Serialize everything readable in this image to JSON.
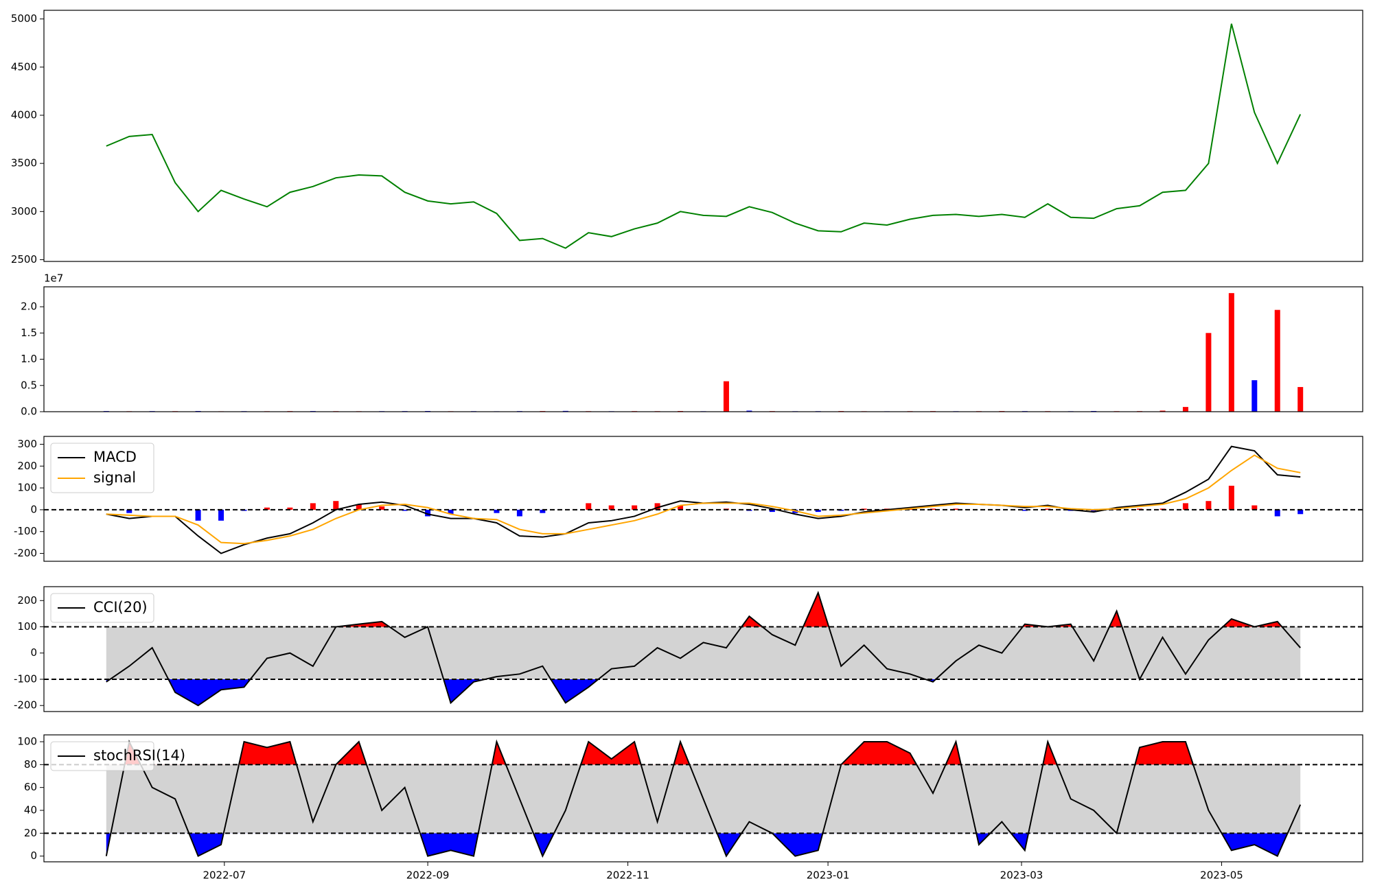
{
  "chart_data": [
    {
      "type": "line",
      "series": [
        {
          "color": "green",
          "values": [
            3680,
            3780,
            3800,
            3300,
            3000,
            3220,
            3130,
            3050,
            3200,
            3260,
            3350,
            3380,
            3370,
            3200,
            3110,
            3080,
            3100,
            2980,
            2700,
            2720,
            2620,
            2780,
            2740,
            2820,
            2880,
            3000,
            2960,
            2950,
            3050,
            2990,
            2880,
            2800,
            2790,
            2880,
            2860,
            2920,
            2960,
            2970,
            2950,
            2970,
            2940,
            3080,
            2940,
            2930,
            3030,
            3060,
            3200,
            3220,
            3500,
            4950,
            4030,
            3500,
            4010
          ]
        }
      ],
      "ylim": [
        2482,
        5090
      ],
      "yticks": [
        2500,
        3000,
        3500,
        4000,
        4500,
        5000
      ]
    },
    {
      "type": "bar",
      "values": [
        120000,
        90000,
        110000,
        100000,
        130000,
        80000,
        100000,
        90000,
        110000,
        120000,
        100000,
        90000,
        100000,
        110000,
        130000,
        90000,
        100000,
        80000,
        110000,
        120000,
        150000,
        100000,
        90000,
        110000,
        100000,
        130000,
        90000,
        5800000,
        200000,
        110000,
        90000,
        100000,
        120000,
        90000,
        80000,
        100000,
        110000,
        90000,
        100000,
        120000,
        110000,
        100000,
        90000,
        130000,
        100000,
        110000,
        200000,
        900000,
        15000000,
        22600000,
        6000000,
        19400000,
        4700000
      ],
      "colors": [
        "blue",
        "red",
        "blue",
        "red",
        "blue",
        "red",
        "blue",
        "red",
        "red",
        "blue",
        "red",
        "red",
        "blue",
        "blue",
        "blue",
        "red",
        "blue",
        "blue",
        "blue",
        "red",
        "blue",
        "red",
        "blue",
        "red",
        "red",
        "red",
        "blue",
        "red",
        "blue",
        "red",
        "blue",
        "blue",
        "red",
        "red",
        "blue",
        "red",
        "red",
        "blue",
        "red",
        "red",
        "blue",
        "red",
        "blue",
        "blue",
        "red",
        "red",
        "red",
        "red",
        "red",
        "red",
        "blue",
        "red",
        "red"
      ],
      "ylim": [
        0,
        23800000
      ],
      "offset_label": "1e7",
      "yticks": [
        {
          "value": 0,
          "label": "0.0"
        },
        {
          "value": 5000000,
          "label": "0.5"
        },
        {
          "value": 10000000,
          "label": "1.0"
        },
        {
          "value": 15000000,
          "label": "1.5"
        },
        {
          "value": 20000000,
          "label": "2.0"
        }
      ]
    },
    {
      "type": "line",
      "series": [
        {
          "name": "MACD",
          "color": "black",
          "values": [
            -20,
            -40,
            -30,
            -30,
            -120,
            -200,
            -160,
            -130,
            -110,
            -60,
            0,
            25,
            35,
            20,
            -20,
            -40,
            -40,
            -60,
            -120,
            -125,
            -110,
            -60,
            -50,
            -30,
            10,
            40,
            30,
            35,
            25,
            5,
            -20,
            -40,
            -30,
            -10,
            0,
            10,
            20,
            30,
            25,
            20,
            10,
            20,
            0,
            -10,
            10,
            20,
            30,
            80,
            140,
            290,
            270,
            160,
            150
          ]
        },
        {
          "name": "signal",
          "color": "orange",
          "values": [
            -20,
            -25,
            -30,
            -30,
            -70,
            -150,
            -155,
            -140,
            -120,
            -90,
            -40,
            0,
            20,
            25,
            10,
            -20,
            -40,
            -45,
            -90,
            -110,
            -110,
            -90,
            -70,
            -50,
            -20,
            20,
            30,
            30,
            30,
            15,
            -5,
            -30,
            -25,
            -15,
            -5,
            5,
            15,
            25,
            25,
            20,
            15,
            15,
            5,
            0,
            5,
            15,
            25,
            50,
            100,
            180,
            250,
            190,
            170
          ]
        }
      ],
      "histogram": {
        "values": [
          0,
          -15,
          0,
          0,
          -50,
          -50,
          -5,
          10,
          10,
          30,
          40,
          25,
          15,
          -5,
          -30,
          -20,
          0,
          -15,
          -30,
          -15,
          0,
          30,
          20,
          20,
          30,
          20,
          0,
          5,
          -5,
          -10,
          -15,
          -10,
          -5,
          5,
          5,
          5,
          5,
          5,
          0,
          0,
          -5,
          5,
          -5,
          -10,
          5,
          5,
          5,
          30,
          40,
          110,
          20,
          -30,
          -20
        ],
        "positive_color": "red",
        "negative_color": "blue"
      },
      "hlines": [
        0
      ],
      "legend": "upper left",
      "ylim": [
        -236,
        336
      ],
      "yticks": [
        -200,
        -100,
        0,
        100,
        200,
        300
      ]
    },
    {
      "type": "line",
      "series": [
        {
          "name": "CCI(20)",
          "color": "black",
          "values": [
            -110,
            -50,
            20,
            -150,
            -200,
            -140,
            -130,
            -20,
            0,
            -50,
            100,
            110,
            120,
            60,
            100,
            -190,
            -110,
            -90,
            -80,
            -50,
            -190,
            -130,
            -60,
            -50,
            20,
            -20,
            40,
            20,
            140,
            70,
            30,
            230,
            -50,
            30,
            -60,
            -80,
            -110,
            -30,
            30,
            0,
            110,
            100,
            110,
            -30,
            160,
            -100,
            60,
            -80,
            50,
            130,
            100,
            120,
            20
          ]
        }
      ],
      "thresholds": [
        -100,
        100
      ],
      "band_color": "lightgray",
      "above_color": "red",
      "below_color": "blue",
      "legend": "upper left",
      "ylim": [
        -223,
        253
      ],
      "yticks": [
        -200,
        -100,
        0,
        100,
        200
      ]
    },
    {
      "type": "line",
      "series": [
        {
          "name": "stochRSI(14)",
          "color": "black",
          "values": [
            0,
            100,
            60,
            50,
            0,
            10,
            100,
            95,
            100,
            30,
            80,
            100,
            40,
            60,
            0,
            5,
            0,
            100,
            50,
            0,
            40,
            100,
            85,
            100,
            30,
            100,
            50,
            0,
            30,
            20,
            0,
            5,
            80,
            100,
            100,
            90,
            55,
            100,
            10,
            30,
            5,
            100,
            50,
            40,
            20,
            95,
            100,
            100,
            40,
            5,
            10,
            0,
            45
          ]
        }
      ],
      "thresholds": [
        20,
        80
      ],
      "band_color": "lightgray",
      "above_color": "red",
      "below_color": "blue",
      "legend": "upper left",
      "ylim": [
        -5,
        106
      ],
      "yticks": [
        0,
        20,
        40,
        60,
        80,
        100
      ],
      "x": [
        "2022-05-26",
        "2022-06-02",
        "2022-06-09",
        "2022-06-16",
        "2022-06-23",
        "2022-06-30",
        "2022-07-07",
        "2022-07-14",
        "2022-07-21",
        "2022-07-28",
        "2022-08-04",
        "2022-08-11",
        "2022-08-18",
        "2022-08-25",
        "2022-09-01",
        "2022-09-08",
        "2022-09-15",
        "2022-09-22",
        "2022-09-29",
        "2022-10-06",
        "2022-10-13",
        "2022-10-20",
        "2022-10-27",
        "2022-11-03",
        "2022-11-10",
        "2022-11-17",
        "2022-11-24",
        "2022-12-01",
        "2022-12-08",
        "2022-12-15",
        "2022-12-22",
        "2022-12-29",
        "2023-01-05",
        "2023-01-12",
        "2023-01-19",
        "2023-01-26",
        "2023-02-02",
        "2023-02-09",
        "2023-02-16",
        "2023-02-23",
        "2023-03-02",
        "2023-03-09",
        "2023-03-16",
        "2023-03-23",
        "2023-03-30",
        "2023-04-06",
        "2023-04-13",
        "2023-04-20",
        "2023-04-27",
        "2023-05-04",
        "2023-05-11",
        "2023-05-18",
        "2023-05-25"
      ],
      "xlim": [
        "2022-05-07",
        "2023-06-13"
      ],
      "xticks": [
        {
          "value": "2022-07-01",
          "label": "2022-07"
        },
        {
          "value": "2022-09-01",
          "label": "2022-09"
        },
        {
          "value": "2022-11-01",
          "label": "2022-11"
        },
        {
          "value": "2023-01-01",
          "label": "2023-01"
        },
        {
          "value": "2023-03-01",
          "label": "2023-03"
        },
        {
          "value": "2023-05-01",
          "label": "2023-05"
        }
      ]
    }
  ]
}
